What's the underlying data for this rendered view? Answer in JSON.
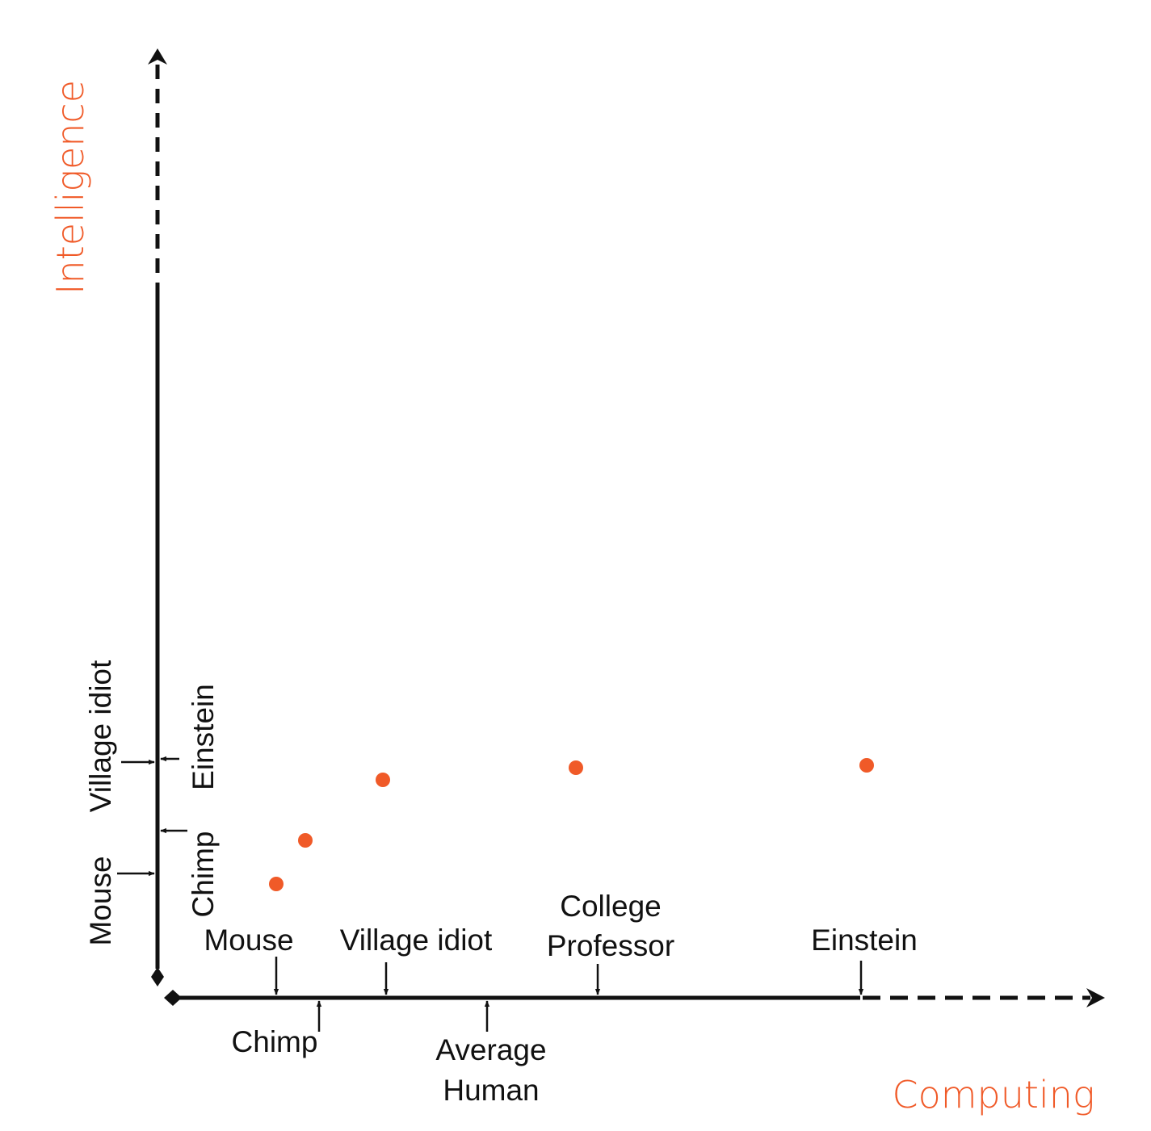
{
  "colors": {
    "accent": "#f05a28",
    "ink": "#111111"
  },
  "axes": {
    "x_title": "Computing",
    "y_title": "Intelligence"
  },
  "x_axis_labels": {
    "mouse": "Mouse",
    "village_idiot": "Village idiot",
    "college_professor_line1": "College",
    "college_professor_line2": "Professor",
    "einstein": "Einstein",
    "chimp": "Chimp",
    "average_human_line1": "Average",
    "average_human_line2": "Human"
  },
  "y_axis_labels": {
    "village_idiot": "Village idiot",
    "mouse": "Mouse",
    "einstein": "Einstein",
    "chimp": "Chimp"
  },
  "points": [
    {
      "name": "Mouse"
    },
    {
      "name": "Chimp"
    },
    {
      "name": "Village idiot"
    },
    {
      "name": "College Professor"
    },
    {
      "name": "Einstein"
    }
  ]
}
